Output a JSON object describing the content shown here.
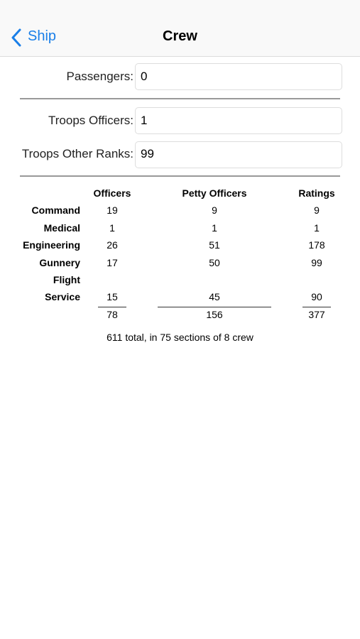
{
  "nav": {
    "back": "Ship",
    "title": "Crew"
  },
  "fields": [
    {
      "label": "Passengers:",
      "value": "0"
    },
    {
      "label": "Troops Officers:",
      "value": "1"
    },
    {
      "label": "Troops Other Ranks:",
      "value": "99"
    }
  ],
  "table": {
    "columns": [
      "Officers",
      "Petty Officers",
      "Ratings"
    ],
    "rows": [
      {
        "label": "Command",
        "values": [
          19,
          9,
          9
        ]
      },
      {
        "label": "Medical",
        "values": [
          1,
          1,
          1
        ]
      },
      {
        "label": "Engineering",
        "values": [
          26,
          51,
          178
        ]
      },
      {
        "label": "Gunnery",
        "values": [
          17,
          50,
          99
        ]
      },
      {
        "label": "Flight",
        "values": []
      },
      {
        "label": "Service",
        "values": [
          15,
          45,
          90
        ]
      }
    ],
    "totals": [
      78,
      156,
      377
    ]
  },
  "summary": "611 total, in 75 sections of 8 crew"
}
